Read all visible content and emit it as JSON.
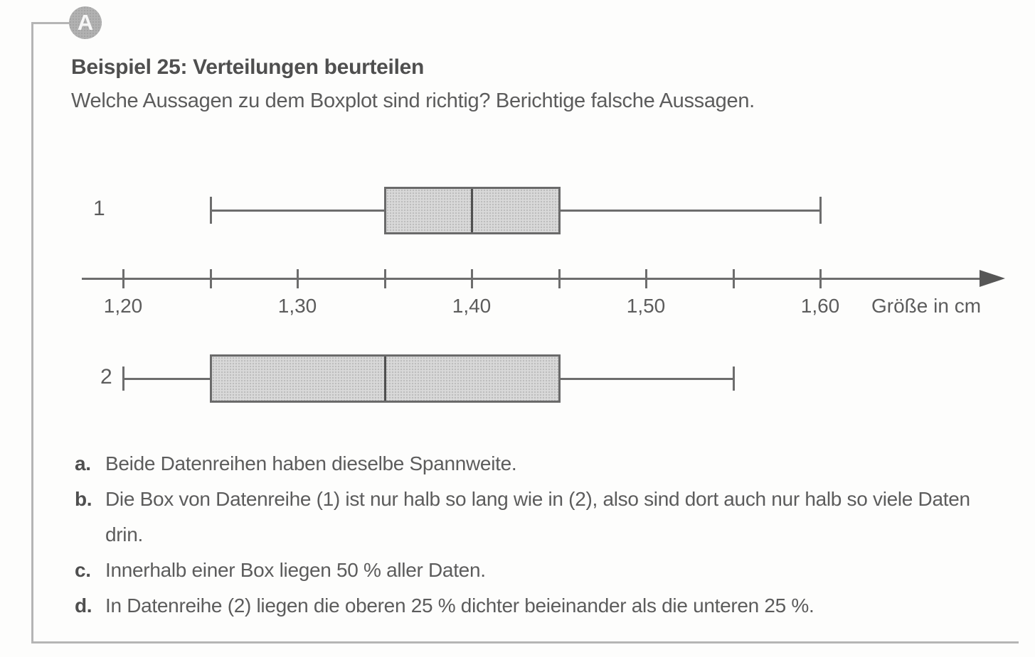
{
  "badge": {
    "letter": "A"
  },
  "header": {
    "title": "Beispiel 25: Verteilungen beurteilen",
    "subtitle": "Welche Aussagen zu dem Boxplot sind richtig? Berichtige falsche Aussagen."
  },
  "chart_data": {
    "type": "boxplot",
    "orientation": "horizontal",
    "xlabel": "Größe in cm",
    "axis_range": [
      1.2,
      1.6
    ],
    "tick_step": 0.05,
    "labeled_tick_step": 0.1,
    "tick_labels": [
      "1,20",
      "1,30",
      "1,40",
      "1,50",
      "1,60"
    ],
    "grid": false,
    "series": [
      {
        "name": "1",
        "min": 1.25,
        "q1": 1.35,
        "median": 1.4,
        "q3": 1.45,
        "max": 1.6
      },
      {
        "name": "2",
        "min": 1.2,
        "q1": 1.25,
        "median": 1.35,
        "q3": 1.45,
        "max": 1.55
      }
    ]
  },
  "statements": [
    {
      "marker": "a.",
      "text": "Beide Datenreihen haben dieselbe Spannweite."
    },
    {
      "marker": "b.",
      "text": "Die Box von Datenreihe (1) ist nur halb so lang wie in (2), also sind dort auch nur halb so viele Daten drin."
    },
    {
      "marker": "c.",
      "text": "Innerhalb einer Box liegen 50 % aller Daten."
    },
    {
      "marker": "d.",
      "text": "In Datenreihe (2) liegen die oberen 25 % dichter beieinander als die unteren 25 %."
    }
  ],
  "colors": {
    "box_fill": "#d9d9d9",
    "box_border": "#6a6a6a",
    "median": "#4f4f4f",
    "axis": "#6d6d6d",
    "text": "#5c5c5c",
    "frame": "#b5b5b5",
    "badge_fill": "#b2b2b2"
  }
}
